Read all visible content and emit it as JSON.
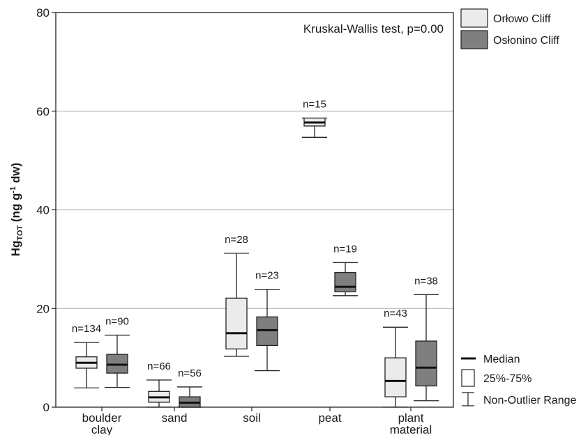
{
  "chart_data": {
    "type": "boxplot",
    "annotation": "Kruskal-Wallis test, p=0.00",
    "ylabel": {
      "main": "Hg",
      "sub": "TOT",
      "rest": " (ng g",
      "sup": "-1",
      "end": " dw)"
    },
    "ylim": [
      0,
      80
    ],
    "yticks": [
      0,
      20,
      40,
      60,
      80
    ],
    "grid_y": [
      20,
      40,
      60
    ],
    "categories": [
      {
        "lines": [
          "boulder",
          "clay"
        ]
      },
      {
        "lines": [
          "sand"
        ]
      },
      {
        "lines": [
          "soil"
        ]
      },
      {
        "lines": [
          "peat"
        ]
      },
      {
        "lines": [
          "plant",
          "material"
        ]
      }
    ],
    "series": [
      {
        "name": "Orłowo Cliff",
        "color": "#ebebeb",
        "boxes": [
          {
            "cat": 0,
            "n": "n=134",
            "min": 3.9,
            "q1": 7.9,
            "median": 9.0,
            "q3": 10.2,
            "max": 13.1
          },
          {
            "cat": 1,
            "n": "n=66",
            "min": 0.0,
            "q1": 1.0,
            "median": 2.0,
            "q3": 3.2,
            "max": 5.5
          },
          {
            "cat": 2,
            "n": "n=28",
            "min": 10.3,
            "q1": 11.8,
            "median": 15.0,
            "q3": 22.1,
            "max": 31.2
          },
          {
            "cat": 3,
            "n": "n=15",
            "min": 54.7,
            "q1": 57.0,
            "median": 57.7,
            "q3": 58.6,
            "max": 58.6
          },
          {
            "cat": 4,
            "n": "n=43",
            "min": 0.0,
            "q1": 2.1,
            "median": 5.3,
            "q3": 10.0,
            "max": 16.2
          }
        ]
      },
      {
        "name": "Osłonino Cliff",
        "color": "#7f7f7f",
        "boxes": [
          {
            "cat": 0,
            "n": "n=90",
            "min": 4.0,
            "q1": 6.9,
            "median": 8.6,
            "q3": 10.7,
            "max": 14.6
          },
          {
            "cat": 1,
            "n": "n=56",
            "min": 0.0,
            "q1": 0.0,
            "median": 0.9,
            "q3": 2.1,
            "max": 4.1
          },
          {
            "cat": 2,
            "n": "n=23",
            "min": 7.4,
            "q1": 12.5,
            "median": 15.6,
            "q3": 18.3,
            "max": 23.9
          },
          {
            "cat": 3,
            "n": "n=19",
            "min": 22.6,
            "q1": 23.4,
            "median": 24.4,
            "q3": 27.3,
            "max": 29.3
          },
          {
            "cat": 4,
            "n": "n=38",
            "min": 1.3,
            "q1": 4.3,
            "median": 8.0,
            "q3": 13.4,
            "max": 22.8
          }
        ]
      }
    ],
    "key_legend": {
      "median": "Median",
      "box": "25%-75%",
      "whisker": "Non-Outlier Range"
    }
  }
}
